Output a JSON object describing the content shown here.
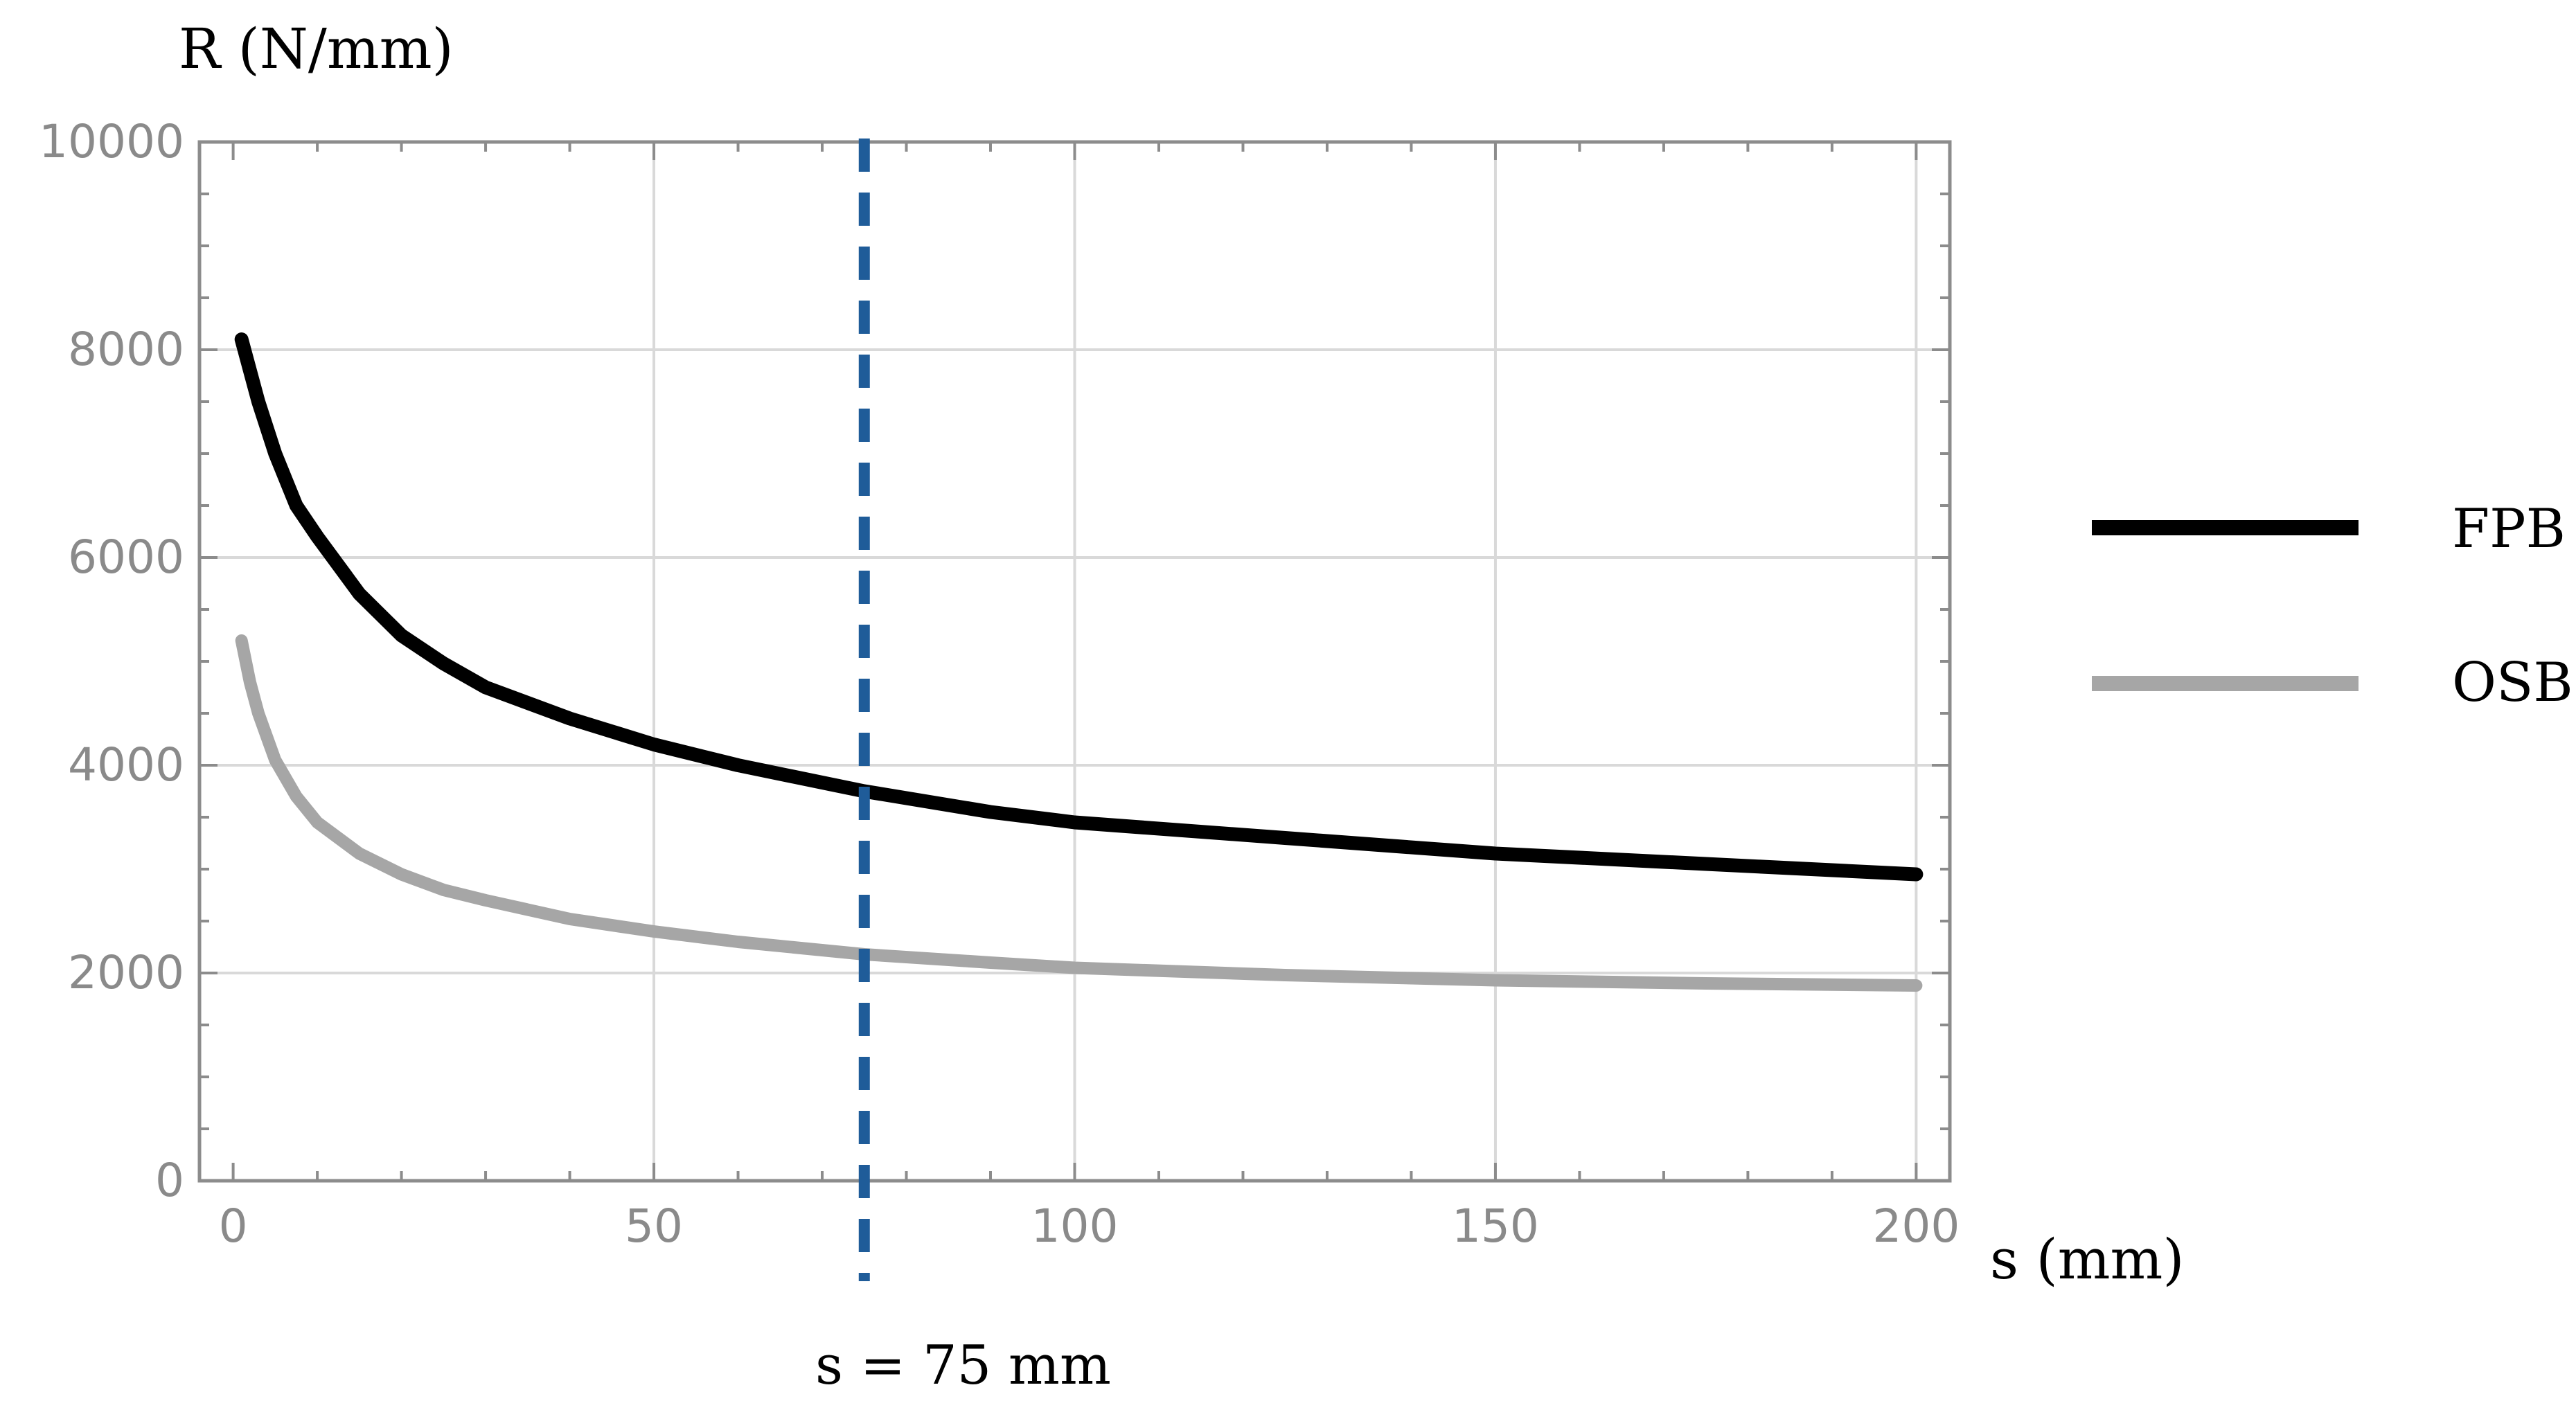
{
  "chart_data": {
    "type": "line",
    "title": "",
    "xlabel": "s (mm)",
    "ylabel": "R (N/mm)",
    "xlim": [
      -4,
      204
    ],
    "ylim": [
      0,
      10000
    ],
    "x_ticks": [
      0,
      50,
      100,
      150,
      200
    ],
    "x_tick_labels": [
      "0",
      "50",
      "100",
      "150",
      "200"
    ],
    "y_ticks": [
      0,
      2000,
      4000,
      6000,
      8000,
      10000
    ],
    "y_tick_labels": [
      "0",
      "2000",
      "4000",
      "6000",
      "8000",
      "10000"
    ],
    "grid": true,
    "legend_position": "right",
    "series": [
      {
        "name": "FPB",
        "color": "#000000",
        "x": [
          1,
          3,
          5,
          7.5,
          10,
          15,
          20,
          25,
          30,
          40,
          50,
          60,
          75,
          90,
          100,
          125,
          150,
          175,
          200
        ],
        "values": [
          8100,
          7500,
          7000,
          6500,
          6200,
          5650,
          5250,
          4980,
          4750,
          4450,
          4200,
          4000,
          3750,
          3550,
          3450,
          3300,
          3150,
          3050,
          2950
        ]
      },
      {
        "name": "OSB",
        "color": "#a6a6a6",
        "x": [
          1,
          2,
          3,
          5,
          7.5,
          10,
          15,
          20,
          25,
          30,
          40,
          50,
          60,
          75,
          90,
          100,
          125,
          150,
          175,
          200
        ],
        "values": [
          5200,
          4800,
          4500,
          4050,
          3700,
          3450,
          3150,
          2950,
          2800,
          2700,
          2520,
          2400,
          2300,
          2180,
          2100,
          2050,
          1980,
          1930,
          1900,
          1880
        ]
      }
    ],
    "reference_line": {
      "x": 75,
      "label": "s = 75 mm",
      "color": "#1f5c99",
      "style": "dashed"
    }
  }
}
